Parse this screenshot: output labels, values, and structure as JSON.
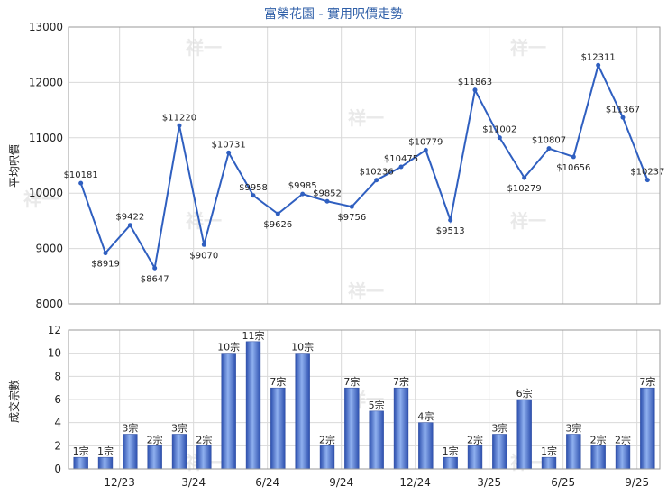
{
  "chart_data": [
    {
      "type": "line",
      "title": "富榮花園 - 實用呎價走勢",
      "ylabel": "平均呎價",
      "ylim": [
        8000,
        13000
      ],
      "yticks": [
        8000,
        9000,
        10000,
        11000,
        12000,
        13000
      ],
      "grid": true,
      "point_labels": [
        "$10181",
        "$8919",
        "$9422",
        "$8647",
        "$11220",
        "$9070",
        "$10731",
        "$9958",
        "$9626",
        "$9985",
        "$9852",
        "$9756",
        "$10236",
        "$10475",
        "$10779",
        "$9513",
        "$11863",
        "$11002",
        "$10279",
        "$10807",
        "$10656",
        "$12311",
        "$11367",
        "$10237"
      ],
      "values": [
        10181,
        8919,
        9422,
        8647,
        11220,
        9070,
        10731,
        9958,
        9626,
        9985,
        9852,
        9756,
        10236,
        10475,
        10779,
        9513,
        11863,
        11002,
        10279,
        10807,
        10656,
        12311,
        11367,
        10237
      ]
    },
    {
      "type": "bar",
      "ylabel": "成交宗數",
      "ylim": [
        0,
        12
      ],
      "yticks": [
        0,
        2,
        4,
        6,
        8,
        10,
        12
      ],
      "grid": true,
      "xtick_labels": [
        "12/23",
        "3/24",
        "6/24",
        "9/24",
        "12/24",
        "3/25",
        "6/25",
        "9/25"
      ],
      "bar_labels": [
        "1宗",
        "1宗",
        "3宗",
        "2宗",
        "3宗",
        "2宗",
        "10宗",
        "11宗",
        "7宗",
        "10宗",
        "2宗",
        "7宗",
        "5宗",
        "7宗",
        "4宗",
        "1宗",
        "2宗",
        "3宗",
        "6宗",
        "1宗",
        "3宗",
        "2宗",
        "2宗",
        "7宗"
      ],
      "values": [
        1,
        1,
        3,
        2,
        3,
        2,
        10,
        11,
        7,
        10,
        2,
        7,
        5,
        7,
        4,
        1,
        2,
        3,
        6,
        1,
        3,
        2,
        2,
        7
      ]
    }
  ],
  "colors": {
    "title": "#2f5fa8",
    "line": "#2f5fc0",
    "bar_dark": "#2c4fae",
    "bar_light": "#8fb0ef",
    "grid": "#d9d9d9"
  }
}
